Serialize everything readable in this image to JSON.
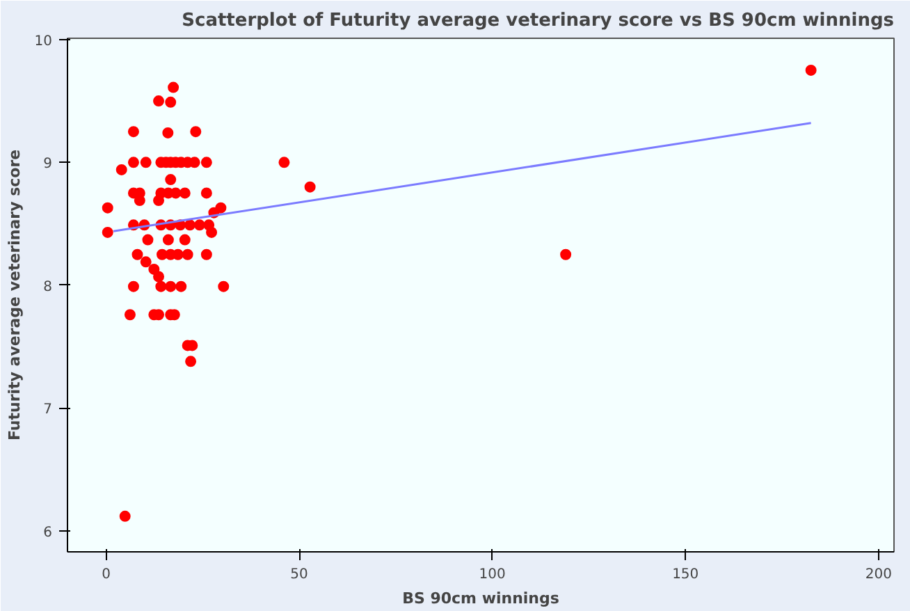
{
  "chart_data": {
    "type": "scatter",
    "title": "Scatterplot of Futurity average veterinary score vs BS 90cm winnings",
    "xlabel": "BS 90cm winnings",
    "ylabel": "Futurity average veterinary score",
    "xlim": [
      -10,
      204
    ],
    "ylim": [
      5.83,
      10.01
    ],
    "xticks": [
      0,
      50,
      100,
      150,
      200
    ],
    "yticks": [
      6,
      7,
      8,
      9,
      10
    ],
    "grid": false,
    "series": [
      {
        "color": "#ff0000",
        "marker": "circle",
        "x": [
          17.4,
          13.6,
          16.7,
          7.1,
          16,
          23.2,
          4,
          7.1,
          10.3,
          14.2,
          15.5,
          16.7,
          18,
          19.4,
          21.1,
          22.9,
          26,
          16.7,
          7.1,
          8.7,
          14.2,
          16.1,
          18,
          20.4,
          26,
          8.7,
          13.6,
          0.4,
          29.7,
          27.9,
          7.1,
          9.9,
          14.2,
          16.7,
          19.2,
          21.7,
          24.2,
          26.6,
          0.4,
          27.3,
          10.8,
          16.1,
          20.4,
          8.1,
          14.5,
          16.7,
          18.6,
          21.1,
          26,
          10.3,
          12.4,
          13.6,
          7.1,
          14.2,
          16.7,
          19.4,
          30.4,
          6.2,
          12.4,
          13.6,
          16.7,
          17.7,
          21.1,
          22.3,
          21.9,
          4.9,
          46.1,
          52.8,
          119,
          182.5
        ],
        "values": [
          9.61,
          9.5,
          9.49,
          9.25,
          9.24,
          9.25,
          8.94,
          9,
          9,
          9,
          9,
          9,
          9,
          9,
          9,
          9,
          9,
          8.86,
          8.75,
          8.75,
          8.75,
          8.75,
          8.75,
          8.75,
          8.75,
          8.69,
          8.69,
          8.63,
          8.63,
          8.59,
          8.49,
          8.49,
          8.49,
          8.49,
          8.49,
          8.49,
          8.49,
          8.49,
          8.43,
          8.43,
          8.37,
          8.37,
          8.37,
          8.25,
          8.25,
          8.25,
          8.25,
          8.25,
          8.25,
          8.19,
          8.13,
          8.07,
          7.99,
          7.99,
          7.99,
          7.99,
          7.99,
          7.76,
          7.76,
          7.76,
          7.76,
          7.76,
          7.51,
          7.51,
          7.38,
          6.12,
          9.0,
          8.8,
          8.25,
          9.75
        ]
      },
      {
        "type": "line",
        "color": "#7b7bff",
        "x": [
          1.9,
          182.5
        ],
        "values": [
          8.44,
          9.32
        ]
      }
    ]
  }
}
